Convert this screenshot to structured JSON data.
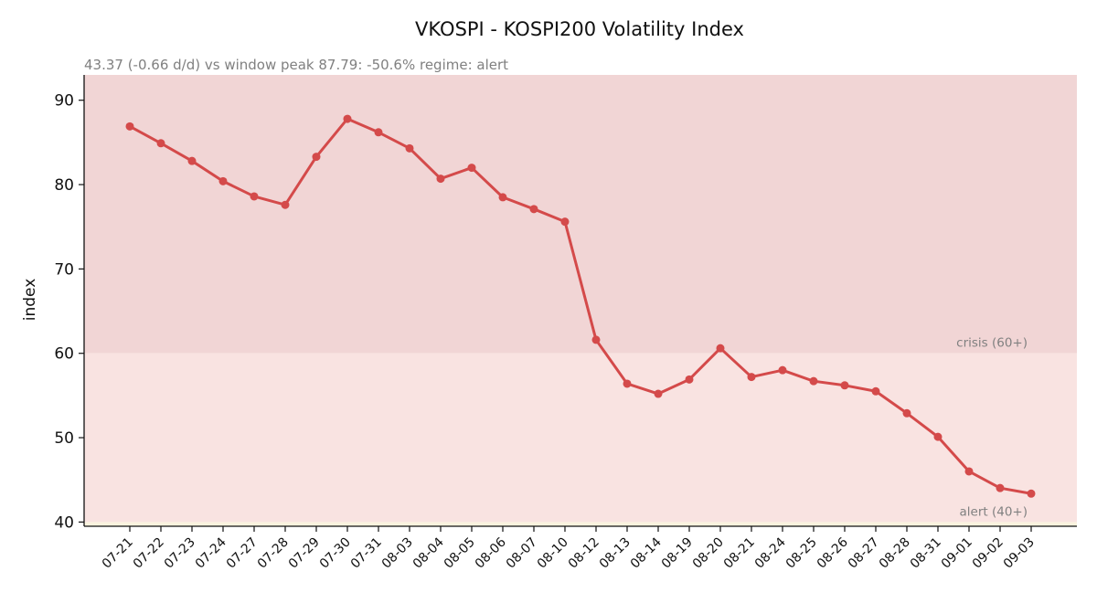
{
  "chart_data": {
    "type": "line",
    "title": "VKOSPI - KOSPI200 Volatility Index",
    "subtitle": "43.37  (-0.66 d/d)   vs window peak 87.79: -50.6%   regime: alert",
    "xlabel": "",
    "ylabel": "index",
    "ylim": [
      39.5,
      93
    ],
    "yticks": [
      40,
      50,
      60,
      70,
      80,
      90
    ],
    "grid": false,
    "categories": [
      "07-21",
      "07-22",
      "07-23",
      "07-24",
      "07-27",
      "07-28",
      "07-29",
      "07-30",
      "07-31",
      "08-03",
      "08-04",
      "08-05",
      "08-06",
      "08-07",
      "08-10",
      "08-12",
      "08-13",
      "08-14",
      "08-19",
      "08-20",
      "08-21",
      "08-24",
      "08-25",
      "08-26",
      "08-27",
      "08-28",
      "08-31",
      "09-01",
      "09-02",
      "09-03"
    ],
    "series": [
      {
        "values": [
          86.9,
          84.9,
          82.8,
          80.4,
          78.6,
          77.6,
          83.3,
          87.79,
          86.2,
          84.3,
          80.7,
          82.0,
          78.5,
          77.1,
          75.6,
          61.6,
          56.4,
          55.2,
          56.9,
          60.6,
          57.2,
          58.0,
          56.7,
          56.2,
          55.5,
          52.9,
          50.1,
          46.0,
          44.03,
          43.37
        ],
        "color": "#d44a4a"
      }
    ],
    "bands": [
      {
        "label": "crisis (60+)",
        "from": 60,
        "to": 93,
        "color": "#f1d5d5"
      },
      {
        "label": "alert (40+)",
        "from": 40,
        "to": 60,
        "color": "#f9e3e1"
      },
      {
        "label": "",
        "from": 39.5,
        "to": 40,
        "color": "#fbf3de"
      }
    ]
  }
}
